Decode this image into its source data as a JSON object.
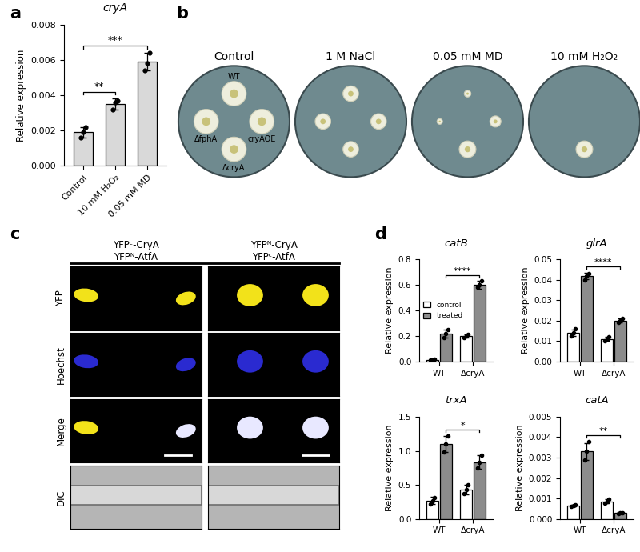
{
  "panel_labels": [
    "a",
    "b",
    "c",
    "d"
  ],
  "chart_data": [
    {
      "type": "bar",
      "title": "cryA",
      "ylabel": "Relative expression",
      "categories": [
        "Control",
        "10 mM H₂O₂",
        "0.05 mM MD"
      ],
      "values": [
        0.0019,
        0.0035,
        0.0059
      ],
      "errors": [
        0.0003,
        0.0003,
        0.0005
      ],
      "points": [
        [
          0.0016,
          0.0019,
          0.0022
        ],
        [
          0.0032,
          0.0036,
          0.0037
        ],
        [
          0.0054,
          0.0058,
          0.0064
        ]
      ],
      "color": "#d9d9d9",
      "ylim": [
        0,
        0.008
      ],
      "yticks": [
        {
          "value": 0,
          "label": "0.000"
        },
        0.002,
        0.004,
        0.006,
        0.008
      ],
      "annotations": [
        {
          "text": "**",
          "between": [
            "Control",
            "10 mM H₂O₂"
          ]
        },
        {
          "text": "***",
          "between": [
            "Control",
            "0.05 mM MD"
          ]
        }
      ]
    },
    {
      "type": "bar",
      "title": "catB",
      "ylabel": "Relative expression",
      "categories": [
        "WT",
        "ΔcryA"
      ],
      "series": [
        {
          "name": "control",
          "color": "#ffffff",
          "values": [
            0.015,
            0.2
          ],
          "errors": [
            0.003,
            0.01
          ],
          "points": [
            [
              0.012,
              0.015,
              0.018
            ],
            [
              0.19,
              0.2,
              0.21
            ]
          ]
        },
        {
          "name": "treated",
          "color": "#8c8c8c",
          "values": [
            0.22,
            0.6
          ],
          "errors": [
            0.03,
            0.03
          ],
          "points": [
            [
              0.19,
              0.22,
              0.25
            ],
            [
              0.58,
              0.6,
              0.63
            ]
          ]
        }
      ],
      "ylim": [
        0,
        0.8
      ],
      "yticks": [
        0.0,
        0.2,
        0.4,
        0.6,
        0.8
      ],
      "legend": "center left",
      "annotations": [
        {
          "text": "****",
          "series": "treated",
          "between": [
            "WT",
            "ΔcryA"
          ]
        }
      ]
    },
    {
      "type": "bar",
      "title": "glrA",
      "ylabel": "Relative expression",
      "categories": [
        "WT",
        "ΔcryA"
      ],
      "series": [
        {
          "name": "control",
          "color": "#ffffff",
          "values": [
            0.014,
            0.011
          ],
          "errors": [
            0.0015,
            0.001
          ],
          "points": [
            [
              0.0125,
              0.014,
              0.016
            ],
            [
              0.01,
              0.011,
              0.012
            ]
          ]
        },
        {
          "name": "treated",
          "color": "#8c8c8c",
          "values": [
            0.042,
            0.02
          ],
          "errors": [
            0.0015,
            0.001
          ],
          "points": [
            [
              0.04,
              0.042,
              0.043
            ],
            [
              0.019,
              0.02,
              0.021
            ]
          ]
        }
      ],
      "ylim": [
        0,
        0.05
      ],
      "yticks": [
        {
          "value": 0,
          "label": "0.00"
        },
        0.01,
        0.02,
        0.03,
        0.04,
        0.05
      ],
      "annotations": [
        {
          "text": "****",
          "series": "treated",
          "between": [
            "WT",
            "ΔcryA"
          ]
        }
      ]
    },
    {
      "type": "bar",
      "title": "trxA",
      "ylabel": "Relative expression",
      "categories": [
        "WT",
        "ΔcryA"
      ],
      "series": [
        {
          "name": "control",
          "color": "#ffffff",
          "values": [
            0.27,
            0.43
          ],
          "errors": [
            0.05,
            0.07
          ],
          "points": [
            [
              0.22,
              0.27,
              0.31
            ],
            [
              0.37,
              0.43,
              0.5
            ]
          ]
        },
        {
          "name": "treated",
          "color": "#8c8c8c",
          "values": [
            1.1,
            0.83
          ],
          "errors": [
            0.12,
            0.1
          ],
          "points": [
            [
              0.98,
              1.1,
              1.22
            ],
            [
              0.75,
              0.83,
              0.93
            ]
          ]
        }
      ],
      "ylim": [
        0,
        1.5
      ],
      "yticks": [
        0.0,
        0.5,
        1.0,
        1.5
      ],
      "annotations": [
        {
          "text": "*",
          "series": "treated",
          "between": [
            "WT",
            "ΔcryA"
          ]
        }
      ]
    },
    {
      "type": "bar",
      "title": "catA",
      "ylabel": "Relative expression",
      "categories": [
        "WT",
        "ΔcryA"
      ],
      "series": [
        {
          "name": "control",
          "color": "#ffffff",
          "values": [
            0.00065,
            0.00085
          ],
          "errors": [
            5e-05,
            0.0001
          ],
          "points": [
            [
              0.0006,
              0.00065,
              0.0007
            ],
            [
              0.00075,
              0.00085,
              0.00095
            ]
          ]
        },
        {
          "name": "treated",
          "color": "#8c8c8c",
          "values": [
            0.0033,
            0.00028
          ],
          "errors": [
            0.0004,
            3e-05
          ],
          "points": [
            [
              0.0029,
              0.0033,
              0.0038
            ],
            [
              0.00025,
              0.00028,
              0.00031
            ]
          ]
        }
      ],
      "ylim": [
        0,
        0.005
      ],
      "yticks": [
        {
          "value": 0,
          "label": "0.000"
        },
        0.001,
        0.002,
        0.003,
        0.004,
        0.005
      ],
      "annotations": [
        {
          "text": "**",
          "series": "treated",
          "between": [
            "WT",
            "ΔcryA"
          ]
        }
      ]
    }
  ],
  "plates": {
    "titles": [
      "Control",
      "1 M NaCl",
      "0.05 mM MD",
      "10 mM H₂O₂"
    ],
    "strains": [
      "WT",
      "ΔfphA",
      "cryAOE",
      "ΔcryA"
    ]
  },
  "microscopy": {
    "columns": [
      "YFPᶜ-CryA\nYFPᴺ-AtfA",
      "YFPᴺ-CryA\nYFPᶜ-AtfA"
    ],
    "rows": [
      "YFP",
      "Hoechst",
      "Merge",
      "DIC"
    ]
  }
}
